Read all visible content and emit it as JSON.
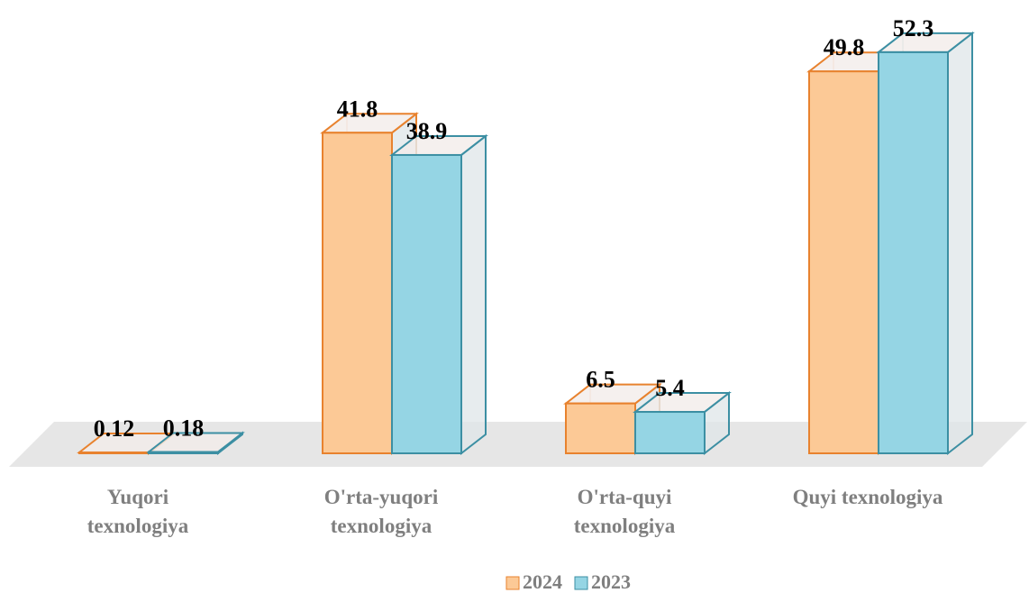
{
  "chart_data": {
    "type": "bar3d",
    "categories": [
      "Yuqori texnologiya",
      "O'rta-yuqori texnologiya",
      "O'rta-quyi texnologiya",
      "Quyi texnologiya"
    ],
    "series": [
      {
        "name": "2024",
        "color": "#fcc996",
        "edge": "#e8822e",
        "values": [
          0.12,
          41.8,
          6.5,
          49.8
        ]
      },
      {
        "name": "2023",
        "color": "#95d5e4",
        "edge": "#3c8fa3",
        "values": [
          0.18,
          38.9,
          5.4,
          52.3
        ]
      }
    ],
    "legend": "bottom"
  }
}
